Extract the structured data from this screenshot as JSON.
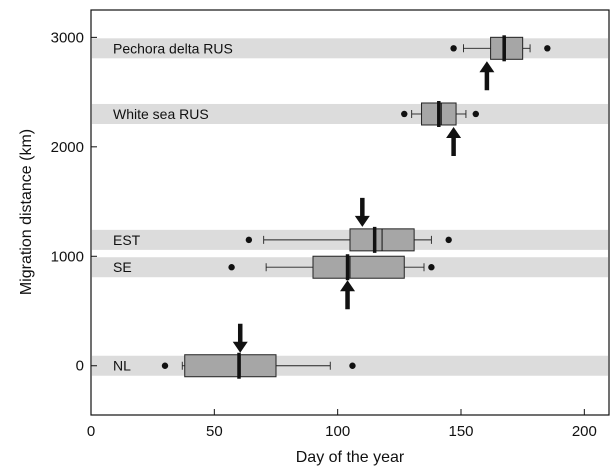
{
  "chart_data": {
    "type": "boxplot",
    "title": "",
    "xlabel": "Day of the year",
    "ylabel": "Migration distance (km)",
    "xlim": [
      0,
      210
    ],
    "ylim": [
      -450,
      3250
    ],
    "xticks": [
      0,
      50,
      100,
      150,
      200
    ],
    "yticks": [
      0,
      1000,
      2000,
      3000
    ],
    "grid": false,
    "band_color": "#dcdcdc",
    "box_color": "#a6a6a6",
    "series": [
      {
        "label": "Pechora delta RUS",
        "distance": 2900,
        "whisker_low": 151,
        "q1": 162,
        "median": 167.5,
        "mean": 168,
        "q3": 175,
        "whisker_high": 178,
        "outliers": [
          147,
          185
        ],
        "arrow_day": 160.5,
        "arrow_dir": "up"
      },
      {
        "label": "White sea RUS",
        "distance": 2300,
        "whisker_low": 130,
        "q1": 134,
        "median": 141,
        "mean": 142,
        "q3": 148,
        "whisker_high": 152,
        "outliers": [
          127,
          156
        ],
        "arrow_day": 147,
        "arrow_dir": "up"
      },
      {
        "label": "EST",
        "distance": 1150,
        "whisker_low": 70,
        "q1": 105,
        "median": 115,
        "mean": 118,
        "q3": 131,
        "whisker_high": 138,
        "outliers": [
          64,
          145
        ],
        "arrow_day": 110,
        "arrow_dir": "down"
      },
      {
        "label": "SE",
        "distance": 900,
        "whisker_low": 71,
        "q1": 90,
        "median": 104,
        "mean": 105,
        "q3": 127,
        "whisker_high": 135,
        "outliers": [
          57,
          138
        ],
        "arrow_day": 104,
        "arrow_dir": "up"
      },
      {
        "label": "NL",
        "distance": 0,
        "whisker_low": 37,
        "q1": 38,
        "median": 60,
        "mean": 60.5,
        "q3": 75,
        "whisker_high": 97,
        "outliers": [
          30,
          106
        ],
        "arrow_day": 60.5,
        "arrow_dir": "down"
      }
    ]
  }
}
